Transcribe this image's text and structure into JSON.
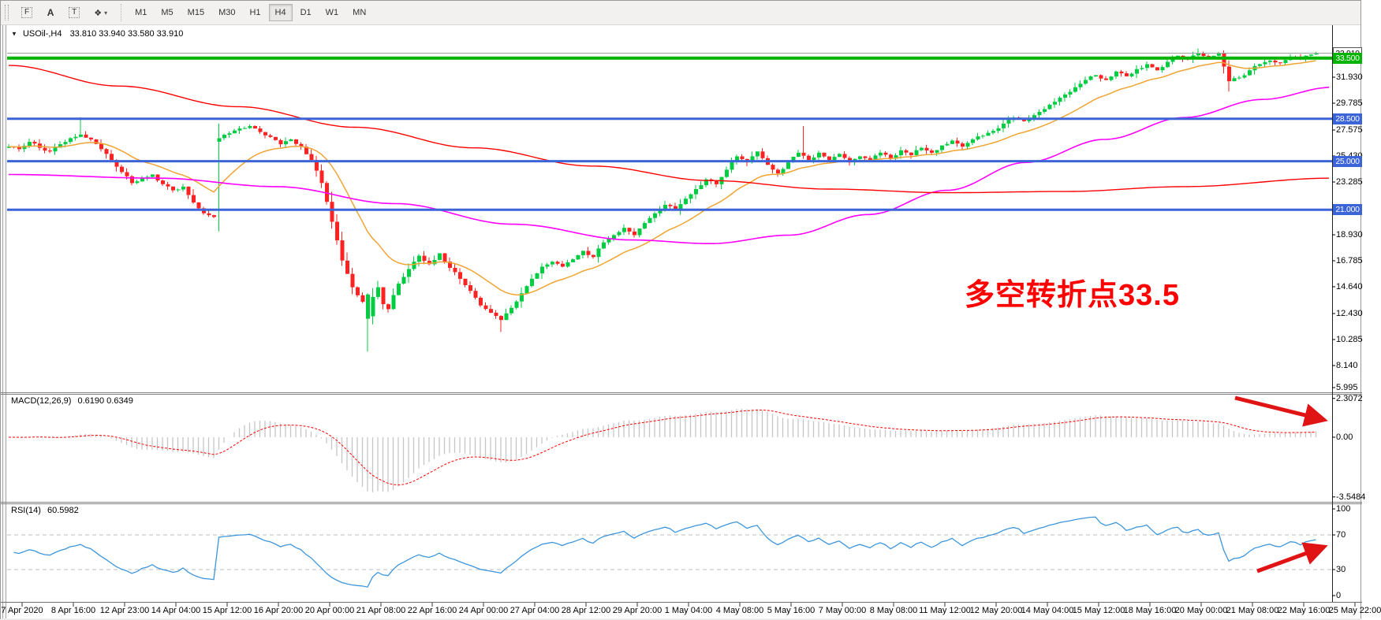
{
  "toolbar": {
    "tools": [
      {
        "name": "fractal-grid-tool",
        "glyph": "F",
        "boxed": true,
        "caret": false
      },
      {
        "name": "text-label-tool",
        "glyph": "A",
        "boxed": false,
        "caret": false
      },
      {
        "name": "text-tool",
        "glyph": "T",
        "boxed": true,
        "caret": false
      },
      {
        "name": "objects-arrange-tool",
        "glyph": "❖",
        "boxed": false,
        "caret": true
      }
    ],
    "timeframes": [
      "M1",
      "M5",
      "M15",
      "M30",
      "H1",
      "H4",
      "D1",
      "W1",
      "MN"
    ],
    "active_timeframe": "H4"
  },
  "chart": {
    "collapse_icon": "▼",
    "title_symbol": "USOil-,H4",
    "title_ohlc": "33.810 33.940 33.580 33.910"
  },
  "annotation": {
    "text": "多空转折点33.5",
    "color": "#ff0000"
  },
  "price_scale": {
    "ticks": [
      "31.930",
      "29.785",
      "27.575",
      "25.430",
      "23.285",
      "18.930",
      "16.785",
      "14.640",
      "12.430",
      "10.285",
      "8.140",
      "5.995"
    ],
    "current_price": "33.910",
    "current_line_color": "#a0a0a0"
  },
  "macd": {
    "label": "MACD(12,26,9)",
    "values": "0.6190 0.6349",
    "scale": [
      "2.3072",
      "0.00",
      "-3.5484"
    ],
    "histogram_color": "#c6c6c6",
    "signal_color": "#ff0000"
  },
  "rsi": {
    "label": "RSI(14)",
    "value": "60.5982",
    "scale": [
      "100",
      "70",
      "30",
      "0"
    ],
    "levels": [
      70,
      30
    ],
    "line_color": "#3d96dc"
  },
  "time_axis": {
    "labels": [
      "7 Apr 2020",
      "8 Apr 16:00",
      "12 Apr 23:00",
      "14 Apr 04:00",
      "15 Apr 12:00",
      "16 Apr 20:00",
      "20 Apr 00:00",
      "21 Apr 08:00",
      "22 Apr 16:00",
      "24 Apr 00:00",
      "27 Apr 04:00",
      "28 Apr 12:00",
      "29 Apr 20:00",
      "1 May 04:00",
      "4 May 08:00",
      "5 May 16:00",
      "7 May 00:00",
      "8 May 08:00",
      "11 May 12:00",
      "12 May 20:00",
      "14 May 04:00",
      "15 May 12:00",
      "18 May 16:00",
      "20 May 00:00",
      "21 May 08:00",
      "22 May 16:00",
      "25 May 22:00"
    ]
  },
  "chart_data": {
    "type": "candlestick",
    "symbol": "USOil-",
    "timeframe": "H4",
    "ohlc_current": {
      "open": 33.81,
      "high": 33.94,
      "low": 33.58,
      "close": 33.91
    },
    "colors": {
      "bull": "#00cd41",
      "bear": "#ff2222",
      "arrow": "#e01414"
    },
    "h_lines": [
      {
        "price": 33.5,
        "label": "33.500",
        "color": "#00b400",
        "width": 4
      },
      {
        "price": 28.5,
        "label": "28.500",
        "color": "#3c64d9",
        "width": 3
      },
      {
        "price": 25.0,
        "label": "25.000",
        "color": "#3c64d9",
        "width": 3
      },
      {
        "price": 21.0,
        "label": "21.000",
        "color": "#3c64d9",
        "width": 3
      }
    ],
    "current_price": 33.91,
    "close_anchors": [
      [
        0,
        26.2
      ],
      [
        2,
        26.0
      ],
      [
        4,
        26.6
      ],
      [
        6,
        26.1
      ],
      [
        8,
        25.8
      ],
      [
        10,
        26.4
      ],
      [
        12,
        26.9
      ],
      [
        14,
        27.2
      ],
      [
        16,
        26.8
      ],
      [
        18,
        26.0
      ],
      [
        20,
        25.1
      ],
      [
        22,
        24.1
      ],
      [
        24,
        23.2
      ],
      [
        26,
        23.6
      ],
      [
        28,
        23.9
      ],
      [
        30,
        23.1
      ],
      [
        32,
        22.6
      ],
      [
        34,
        22.9
      ],
      [
        36,
        21.6
      ],
      [
        38,
        20.7
      ],
      [
        40,
        20.4
      ],
      [
        41,
        26.9
      ],
      [
        43,
        27.3
      ],
      [
        45,
        27.7
      ],
      [
        47,
        27.9
      ],
      [
        49,
        27.4
      ],
      [
        51,
        27.0
      ],
      [
        53,
        26.4
      ],
      [
        55,
        26.8
      ],
      [
        57,
        26.2
      ],
      [
        59,
        25.1
      ],
      [
        61,
        23.2
      ],
      [
        63,
        20.0
      ],
      [
        65,
        16.8
      ],
      [
        67,
        14.6
      ],
      [
        69,
        13.4
      ],
      [
        70,
        12.2
      ],
      [
        71,
        13.8
      ],
      [
        72,
        14.6
      ],
      [
        73,
        13.2
      ],
      [
        74,
        12.8
      ],
      [
        76,
        14.9
      ],
      [
        78,
        16.1
      ],
      [
        80,
        17.2
      ],
      [
        82,
        16.5
      ],
      [
        84,
        17.4
      ],
      [
        86,
        16.2
      ],
      [
        88,
        15.3
      ],
      [
        90,
        14.3
      ],
      [
        92,
        13.1
      ],
      [
        94,
        12.5
      ],
      [
        96,
        11.9
      ],
      [
        98,
        12.9
      ],
      [
        100,
        14.1
      ],
      [
        102,
        15.3
      ],
      [
        104,
        16.3
      ],
      [
        106,
        16.7
      ],
      [
        108,
        16.3
      ],
      [
        110,
        16.9
      ],
      [
        112,
        17.6
      ],
      [
        114,
        17.1
      ],
      [
        116,
        18.3
      ],
      [
        118,
        18.9
      ],
      [
        120,
        19.5
      ],
      [
        122,
        18.9
      ],
      [
        124,
        19.9
      ],
      [
        126,
        20.7
      ],
      [
        128,
        21.4
      ],
      [
        130,
        21.0
      ],
      [
        132,
        21.9
      ],
      [
        134,
        22.7
      ],
      [
        136,
        23.5
      ],
      [
        138,
        23.1
      ],
      [
        140,
        24.3
      ],
      [
        142,
        25.4
      ],
      [
        144,
        24.9
      ],
      [
        146,
        25.8
      ],
      [
        148,
        24.7
      ],
      [
        150,
        24.0
      ],
      [
        152,
        24.9
      ],
      [
        154,
        25.7
      ],
      [
        156,
        25.1
      ],
      [
        158,
        25.7
      ],
      [
        160,
        25.1
      ],
      [
        162,
        25.6
      ],
      [
        164,
        24.9
      ],
      [
        166,
        25.4
      ],
      [
        168,
        25.1
      ],
      [
        170,
        25.7
      ],
      [
        172,
        25.2
      ],
      [
        174,
        25.9
      ],
      [
        176,
        25.5
      ],
      [
        178,
        26.1
      ],
      [
        180,
        25.7
      ],
      [
        182,
        26.3
      ],
      [
        184,
        26.7
      ],
      [
        186,
        26.2
      ],
      [
        188,
        26.8
      ],
      [
        190,
        27.1
      ],
      [
        192,
        27.5
      ],
      [
        194,
        28.1
      ],
      [
        196,
        28.6
      ],
      [
        198,
        28.3
      ],
      [
        200,
        28.8
      ],
      [
        202,
        29.3
      ],
      [
        204,
        29.9
      ],
      [
        206,
        30.5
      ],
      [
        208,
        31.1
      ],
      [
        210,
        31.7
      ],
      [
        212,
        32.1
      ],
      [
        214,
        31.7
      ],
      [
        216,
        32.4
      ],
      [
        218,
        32.0
      ],
      [
        220,
        32.6
      ],
      [
        222,
        33.0
      ],
      [
        224,
        32.5
      ],
      [
        226,
        33.2
      ],
      [
        228,
        33.7
      ],
      [
        230,
        33.4
      ],
      [
        232,
        33.9
      ],
      [
        234,
        33.6
      ],
      [
        236,
        33.9
      ],
      [
        238,
        31.6
      ],
      [
        240,
        31.9
      ],
      [
        242,
        32.5
      ],
      [
        244,
        33.0
      ],
      [
        246,
        33.3
      ],
      [
        248,
        33.1
      ],
      [
        250,
        33.6
      ],
      [
        252,
        33.4
      ],
      [
        254,
        33.8
      ],
      [
        255,
        33.91
      ]
    ],
    "candle_overrides": {
      "14": {
        "high": 28.63
      },
      "41": {
        "open": 26.6
      },
      "70": {
        "open": 12.0,
        "close": 14.0,
        "low": 9.3
      },
      "96": {
        "low": 10.9
      },
      "155": {
        "high": 27.9
      },
      "232": {
        "high": 34.3
      },
      "238": {
        "low": 30.75
      }
    },
    "moving_averages": {
      "fast": {
        "color": "#efa533",
        "period": 18,
        "width": 1.5
      },
      "mid": {
        "color": "#ff00ff",
        "width": 1.6,
        "points": [
          [
            10,
            23.9
          ],
          [
            200,
            23.6
          ],
          [
            350,
            22.9
          ],
          [
            500,
            21.5
          ],
          [
            650,
            19.8
          ],
          [
            800,
            18.5
          ],
          [
            900,
            18.2
          ],
          [
            1000,
            18.9
          ],
          [
            1100,
            20.6
          ],
          [
            1200,
            22.6
          ],
          [
            1300,
            24.9
          ],
          [
            1400,
            26.8
          ],
          [
            1500,
            28.6
          ],
          [
            1600,
            30.1
          ],
          [
            1688,
            31.1
          ]
        ]
      },
      "slow": {
        "color": "#ff0000",
        "width": 1.4,
        "points": [
          [
            10,
            32.9
          ],
          [
            150,
            31.2
          ],
          [
            300,
            29.5
          ],
          [
            450,
            27.8
          ],
          [
            600,
            26.1
          ],
          [
            750,
            24.6
          ],
          [
            900,
            23.4
          ],
          [
            1050,
            22.7
          ],
          [
            1200,
            22.4
          ],
          [
            1350,
            22.5
          ],
          [
            1500,
            22.9
          ],
          [
            1688,
            23.6
          ]
        ]
      }
    },
    "y_axis": {
      "visible_ticks_top": 31.93,
      "visible_ticks_bottom": 5.995
    },
    "annotations": {
      "macd_arrow": {
        "from": [
          1565,
          504
        ],
        "to": [
          1678,
          532
        ]
      },
      "rsi_arrow": {
        "from": [
          1593,
          724
        ],
        "to": [
          1678,
          693
        ]
      }
    }
  }
}
